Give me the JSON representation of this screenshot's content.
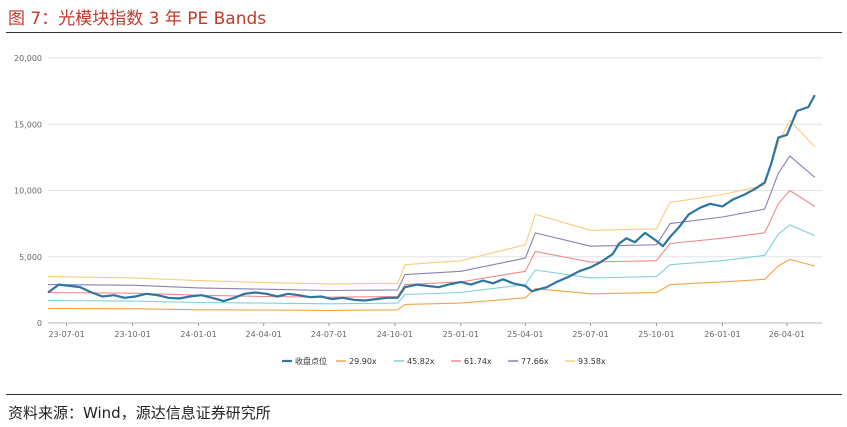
{
  "figure": {
    "title": "图 7：光模块指数 3 年 PE Bands",
    "source": "资料来源：Wind，源达信息证券研究所"
  },
  "colors": {
    "title": "#c0392b",
    "series": [
      "#2e75a0",
      "#f2a34a",
      "#7fd1d8",
      "#f08a8a",
      "#8b80b0",
      "#f5cf7a"
    ]
  },
  "chart_data": {
    "type": "line",
    "x_ticks": [
      "23-07-01",
      "23-10-01",
      "24-01-01",
      "24-04-01",
      "24-07-01",
      "24-10-01",
      "25-01-01",
      "25-04-01",
      "25-07-01",
      "25-10-01",
      "26-01-01",
      "26-04-01"
    ],
    "y_ticks": [
      "0",
      "5,000",
      "10,000",
      "15,000",
      "20,000"
    ],
    "ylim": [
      0,
      20000
    ],
    "xlim": [
      "2023-06-05",
      "2026-05-20"
    ],
    "grid": true,
    "legend": "bottom",
    "series": [
      {
        "name": "收盘点位",
        "points": [
          [
            "2023-06-05",
            2300
          ],
          [
            "2023-06-20",
            2900
          ],
          [
            "2023-07-05",
            2800
          ],
          [
            "2023-07-20",
            2700
          ],
          [
            "2023-08-05",
            2300
          ],
          [
            "2023-08-20",
            2000
          ],
          [
            "2023-09-05",
            2100
          ],
          [
            "2023-09-20",
            1900
          ],
          [
            "2023-10-05",
            2000
          ],
          [
            "2023-10-20",
            2200
          ],
          [
            "2023-11-05",
            2100
          ],
          [
            "2023-11-20",
            1900
          ],
          [
            "2023-12-05",
            1850
          ],
          [
            "2023-12-20",
            2000
          ],
          [
            "2024-01-05",
            2100
          ],
          [
            "2024-01-20",
            1900
          ],
          [
            "2024-02-05",
            1650
          ],
          [
            "2024-02-20",
            1900
          ],
          [
            "2024-03-05",
            2200
          ],
          [
            "2024-03-20",
            2300
          ],
          [
            "2024-04-05",
            2200
          ],
          [
            "2024-04-20",
            2000
          ],
          [
            "2024-05-05",
            2200
          ],
          [
            "2024-05-20",
            2100
          ],
          [
            "2024-06-05",
            1950
          ],
          [
            "2024-06-20",
            2000
          ],
          [
            "2024-07-05",
            1800
          ],
          [
            "2024-07-20",
            1900
          ],
          [
            "2024-08-05",
            1750
          ],
          [
            "2024-08-20",
            1700
          ],
          [
            "2024-09-05",
            1800
          ],
          [
            "2024-09-20",
            1900
          ],
          [
            "2024-10-05",
            1900
          ],
          [
            "2024-10-15",
            2700
          ],
          [
            "2024-11-01",
            2900
          ],
          [
            "2024-11-15",
            2800
          ],
          [
            "2024-12-01",
            2700
          ],
          [
            "2024-12-15",
            2900
          ],
          [
            "2025-01-01",
            3100
          ],
          [
            "2025-01-15",
            2900
          ],
          [
            "2025-02-01",
            3200
          ],
          [
            "2025-02-15",
            3000
          ],
          [
            "2025-03-01",
            3300
          ],
          [
            "2025-03-15",
            3000
          ],
          [
            "2025-04-01",
            2800
          ],
          [
            "2025-04-10",
            2400
          ],
          [
            "2025-05-01",
            2700
          ],
          [
            "2025-05-15",
            3100
          ],
          [
            "2025-06-01",
            3500
          ],
          [
            "2025-06-15",
            3900
          ],
          [
            "2025-07-01",
            4200
          ],
          [
            "2025-07-15",
            4600
          ],
          [
            "2025-08-01",
            5200
          ],
          [
            "2025-08-10",
            6000
          ],
          [
            "2025-08-20",
            6400
          ],
          [
            "2025-09-01",
            6100
          ],
          [
            "2025-09-15",
            6800
          ],
          [
            "2025-10-01",
            6200
          ],
          [
            "2025-10-10",
            5800
          ],
          [
            "2025-10-20",
            6500
          ],
          [
            "2025-11-01",
            7200
          ],
          [
            "2025-11-15",
            8200
          ],
          [
            "2025-12-01",
            8700
          ],
          [
            "2025-12-15",
            9000
          ],
          [
            "2026-01-01",
            8800
          ],
          [
            "2026-01-15",
            9300
          ],
          [
            "2026-02-01",
            9700
          ],
          [
            "2026-02-15",
            10100
          ],
          [
            "2026-03-01",
            10600
          ],
          [
            "2026-03-10",
            12000
          ],
          [
            "2026-03-20",
            14000
          ],
          [
            "2026-04-01",
            14200
          ],
          [
            "2026-04-15",
            16000
          ],
          [
            "2026-05-01",
            16300
          ],
          [
            "2026-05-10",
            17200
          ]
        ]
      },
      {
        "name": "29.90x",
        "points": [
          [
            "2023-06-05",
            1100
          ],
          [
            "2023-10-01",
            1080
          ],
          [
            "2024-01-01",
            1000
          ],
          [
            "2024-04-01",
            980
          ],
          [
            "2024-07-01",
            950
          ],
          [
            "2024-10-05",
            1000
          ],
          [
            "2024-10-15",
            1400
          ],
          [
            "2025-01-01",
            1500
          ],
          [
            "2025-04-01",
            1900
          ],
          [
            "2025-04-15",
            2600
          ],
          [
            "2025-07-01",
            2200
          ],
          [
            "2025-10-01",
            2300
          ],
          [
            "2025-10-20",
            2900
          ],
          [
            "2026-01-01",
            3100
          ],
          [
            "2026-03-01",
            3300
          ],
          [
            "2026-03-20",
            4300
          ],
          [
            "2026-04-05",
            4800
          ],
          [
            "2026-05-10",
            4300
          ]
        ]
      },
      {
        "name": "45.82x",
        "points": [
          [
            "2023-06-05",
            1700
          ],
          [
            "2023-10-01",
            1650
          ],
          [
            "2024-01-01",
            1550
          ],
          [
            "2024-04-01",
            1500
          ],
          [
            "2024-07-01",
            1450
          ],
          [
            "2024-10-05",
            1500
          ],
          [
            "2024-10-15",
            2150
          ],
          [
            "2025-01-01",
            2300
          ],
          [
            "2025-04-01",
            2900
          ],
          [
            "2025-04-15",
            4000
          ],
          [
            "2025-07-01",
            3400
          ],
          [
            "2025-10-01",
            3500
          ],
          [
            "2025-10-20",
            4400
          ],
          [
            "2026-01-01",
            4700
          ],
          [
            "2026-03-01",
            5100
          ],
          [
            "2026-03-20",
            6700
          ],
          [
            "2026-04-05",
            7400
          ],
          [
            "2026-05-10",
            6600
          ]
        ]
      },
      {
        "name": "61.74x",
        "points": [
          [
            "2023-06-05",
            2300
          ],
          [
            "2023-10-01",
            2250
          ],
          [
            "2024-01-01",
            2100
          ],
          [
            "2024-04-01",
            2000
          ],
          [
            "2024-07-01",
            1950
          ],
          [
            "2024-10-05",
            2000
          ],
          [
            "2024-10-15",
            2900
          ],
          [
            "2025-01-01",
            3100
          ],
          [
            "2025-04-01",
            3900
          ],
          [
            "2025-04-15",
            5400
          ],
          [
            "2025-07-01",
            4600
          ],
          [
            "2025-10-01",
            4700
          ],
          [
            "2025-10-20",
            6000
          ],
          [
            "2026-01-01",
            6400
          ],
          [
            "2026-03-01",
            6800
          ],
          [
            "2026-03-20",
            9000
          ],
          [
            "2026-04-05",
            10000
          ],
          [
            "2026-05-10",
            8800
          ]
        ]
      },
      {
        "name": "77.66x",
        "points": [
          [
            "2023-06-05",
            2900
          ],
          [
            "2023-10-01",
            2850
          ],
          [
            "2024-01-01",
            2650
          ],
          [
            "2024-04-01",
            2550
          ],
          [
            "2024-07-01",
            2450
          ],
          [
            "2024-10-05",
            2500
          ],
          [
            "2024-10-15",
            3650
          ],
          [
            "2025-01-01",
            3900
          ],
          [
            "2025-04-01",
            4900
          ],
          [
            "2025-04-15",
            6800
          ],
          [
            "2025-07-01",
            5800
          ],
          [
            "2025-10-01",
            5900
          ],
          [
            "2025-10-20",
            7500
          ],
          [
            "2026-01-01",
            8000
          ],
          [
            "2026-03-01",
            8600
          ],
          [
            "2026-03-20",
            11300
          ],
          [
            "2026-04-05",
            12600
          ],
          [
            "2026-05-10",
            11000
          ]
        ]
      },
      {
        "name": "93.58x",
        "points": [
          [
            "2023-06-05",
            3500
          ],
          [
            "2023-10-01",
            3400
          ],
          [
            "2024-01-01",
            3200
          ],
          [
            "2024-04-01",
            3050
          ],
          [
            "2024-07-01",
            2950
          ],
          [
            "2024-10-05",
            3000
          ],
          [
            "2024-10-15",
            4400
          ],
          [
            "2025-01-01",
            4700
          ],
          [
            "2025-04-01",
            5900
          ],
          [
            "2025-04-15",
            8200
          ],
          [
            "2025-07-01",
            7000
          ],
          [
            "2025-10-01",
            7100
          ],
          [
            "2025-10-20",
            9100
          ],
          [
            "2026-01-01",
            9700
          ],
          [
            "2026-03-01",
            10400
          ],
          [
            "2026-03-20",
            13600
          ],
          [
            "2026-04-05",
            15300
          ],
          [
            "2026-05-10",
            13300
          ]
        ]
      }
    ]
  }
}
